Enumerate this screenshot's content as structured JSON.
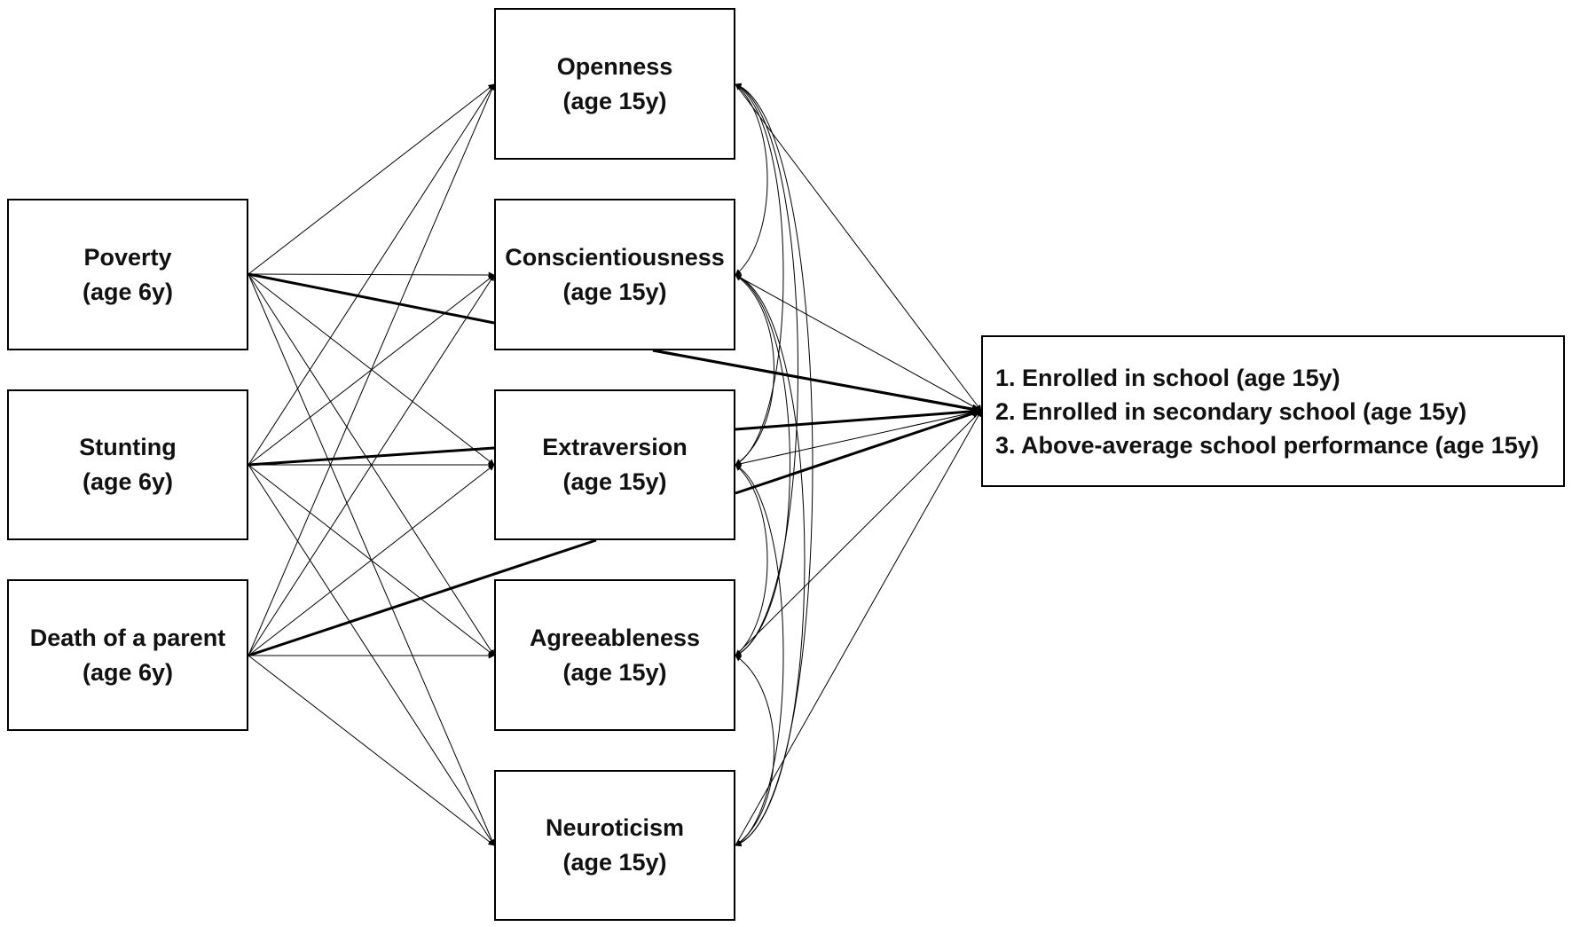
{
  "predictors": [
    {
      "id": "poverty",
      "name": "Poverty",
      "age": "(age 6y)"
    },
    {
      "id": "stunting",
      "name": "Stunting",
      "age": "(age 6y)"
    },
    {
      "id": "death",
      "name": "Death of a parent",
      "age": "(age 6y)"
    }
  ],
  "traits": [
    {
      "id": "openness",
      "name": "Openness",
      "age": "(age 15y)"
    },
    {
      "id": "conscientiousness",
      "name": "Conscientiousness",
      "age": "(age 15y)"
    },
    {
      "id": "extraversion",
      "name": "Extraversion",
      "age": "(age 15y)"
    },
    {
      "id": "agreeableness",
      "name": "Agreeableness",
      "age": "(age 15y)"
    },
    {
      "id": "neuroticism",
      "name": "Neuroticism",
      "age": "(age 15y)"
    }
  ],
  "outcomes": [
    "1. Enrolled in school (age 15y)",
    "2. Enrolled in secondary school (age 15y)",
    "3. Above-average school performance (age 15y)"
  ],
  "bold_paths": [
    [
      "poverty",
      "outcome"
    ],
    [
      "stunting",
      "outcome"
    ],
    [
      "death",
      "outcome"
    ],
    [
      "conscientiousness",
      "outcome"
    ],
    [
      "extraversion",
      "outcome"
    ]
  ],
  "colors": {
    "line": "#000000",
    "box_border": "#000000",
    "text": "#111111"
  }
}
